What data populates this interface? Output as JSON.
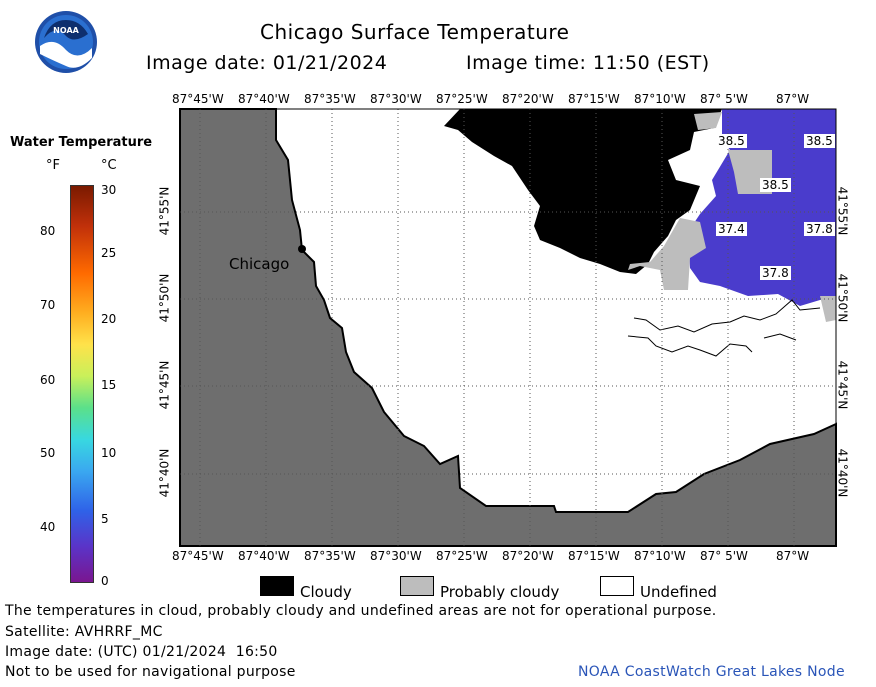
{
  "header": {
    "title": "Chicago Surface Temperature",
    "image_date": "Image date: 01/21/2024",
    "image_time": "Image time: 11:50 (EST)",
    "logo_text": "NOAA"
  },
  "colorbar": {
    "title": "Water Temperature",
    "unit_f": "°F",
    "unit_c": "°C",
    "f_ticks": [
      "80",
      "70",
      "60",
      "50",
      "40"
    ],
    "c_ticks": [
      "30",
      "25",
      "20",
      "15",
      "10",
      "5",
      "0"
    ]
  },
  "map": {
    "lon_labels": [
      "87°45'W",
      "87°40'W",
      "87°35'W",
      "87°30'W",
      "87°25'W",
      "87°20'W",
      "87°15'W",
      "87°10'W",
      "87° 5'W",
      "87°W"
    ],
    "lat_labels": [
      "41°55'N",
      "41°50'N",
      "41°45'N",
      "41°40'N"
    ],
    "city_label": "Chicago",
    "temp_labels": [
      "38.5",
      "38.5",
      "38.5",
      "37.4",
      "37.8",
      "37.8"
    ],
    "colors": {
      "land": "#6e6e6e",
      "cloudy": "#000000",
      "probably_cloudy": "#bdbdbd",
      "undefined": "#ffffff",
      "water": "#4a3ccc"
    }
  },
  "legend": {
    "cloudy": "Cloudy",
    "probably_cloudy": "Probably cloudy",
    "undefined": "Undefined"
  },
  "footer": {
    "disclaimer": "The temperatures in cloud, probably cloudy and undefined areas are not for operational purpose.",
    "satellite": "Satellite: AVHRRF_MC",
    "utc_date": "Image date: (UTC) 01/21/2024  16:50",
    "nav_warning": "Not to be used for navigational purpose",
    "credit": "NOAA CoastWatch Great Lakes Node"
  }
}
